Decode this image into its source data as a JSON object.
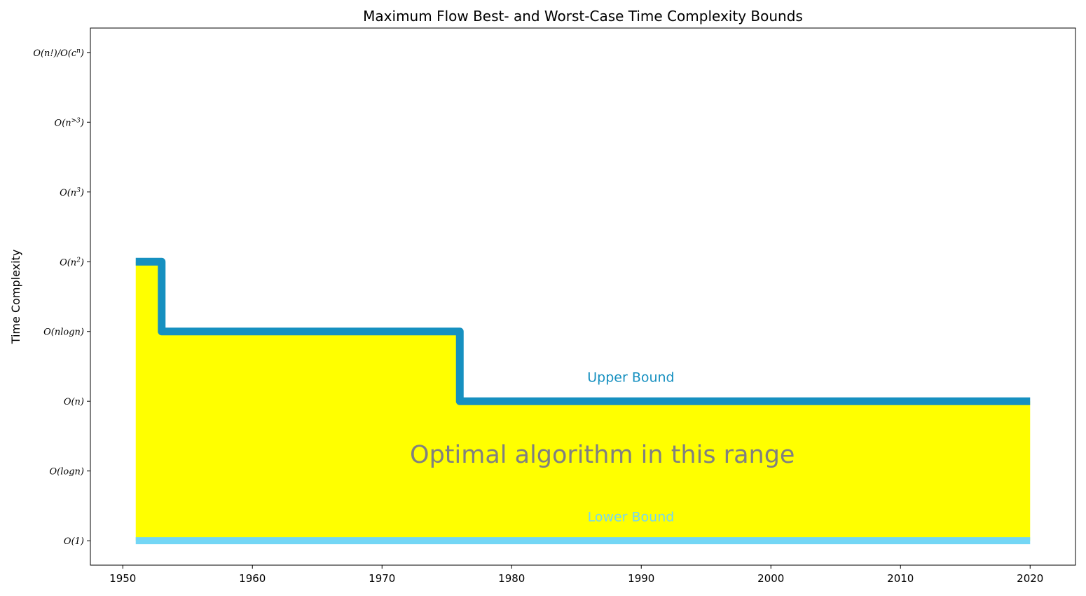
{
  "chart_data": {
    "type": "area",
    "title": "Maximum Flow Best- and Worst-Case Time Complexity Bounds",
    "xlabel": "",
    "ylabel": "Time Complexity",
    "xlim": [
      1947.5,
      2023.5
    ],
    "xticks": [
      1950,
      1960,
      1970,
      1980,
      1990,
      2000,
      2010,
      2020
    ],
    "xtick_labels": [
      "1950",
      "1960",
      "1970",
      "1980",
      "1990",
      "2000",
      "2010",
      "2020"
    ],
    "ylim": [
      -0.35,
      7.35
    ],
    "yticks": [
      0,
      1,
      2,
      3,
      4,
      5,
      6,
      7
    ],
    "ytick_labels": [
      "O(1)",
      "O(logn)",
      "O(n)",
      "O(nlogn)",
      "O(n2)",
      "O(n3)",
      "O(n>3)",
      "O(n!)/O(cn)"
    ],
    "grid": false,
    "series": [
      {
        "name": "Upper Bound",
        "style": "step",
        "color": "#1690c0",
        "x": [
          1951,
          1953,
          1976,
          2020
        ],
        "y": [
          4,
          3,
          2,
          2
        ]
      },
      {
        "name": "Lower Bound",
        "style": "step",
        "color": "#73d6f5",
        "x": [
          1951,
          2020
        ],
        "y": [
          0,
          0
        ]
      }
    ],
    "fill_between": {
      "color": "#ffff00",
      "x": [
        1951,
        1953,
        1976,
        2020
      ],
      "y_upper": [
        4,
        3,
        2,
        2
      ],
      "y_lower": [
        0,
        0,
        0,
        0
      ]
    },
    "annotations": [
      {
        "name": "upper-label",
        "text": "Upper Bound",
        "x": 1989.2,
        "y": 2.28,
        "color": "#1690c0"
      },
      {
        "name": "lower-label",
        "text": "Lower Bound",
        "x": 1989.2,
        "y": 0.28,
        "color": "#73d6f5"
      },
      {
        "name": "range-label",
        "text": "Optimal algorithm in this range",
        "x": 1987,
        "y": 1.12,
        "color": "#808080"
      }
    ]
  }
}
